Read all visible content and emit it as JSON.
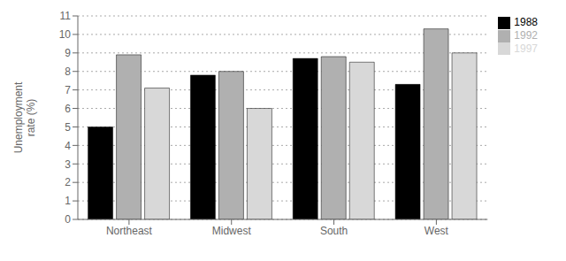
{
  "chart_data": {
    "type": "bar",
    "categories": [
      "Northeast",
      "Midwest",
      "South",
      "West"
    ],
    "series": [
      {
        "name": "1988",
        "color": "#000000",
        "values": [
          5.0,
          7.8,
          8.7,
          7.3
        ]
      },
      {
        "name": "1992",
        "color": "#b0b0b0",
        "values": [
          8.9,
          8.0,
          8.8,
          10.3
        ]
      },
      {
        "name": "1997",
        "color": "#d8d8d8",
        "values": [
          7.1,
          6.0,
          8.5,
          9.0
        ]
      }
    ],
    "y_label": "Unemployment\nrate (%)",
    "ylim": [
      0,
      11
    ],
    "yticks": [
      0,
      1,
      2,
      3,
      4,
      5,
      6,
      7,
      8,
      9,
      10,
      11
    ],
    "grid": true,
    "legend": "upper right"
  }
}
